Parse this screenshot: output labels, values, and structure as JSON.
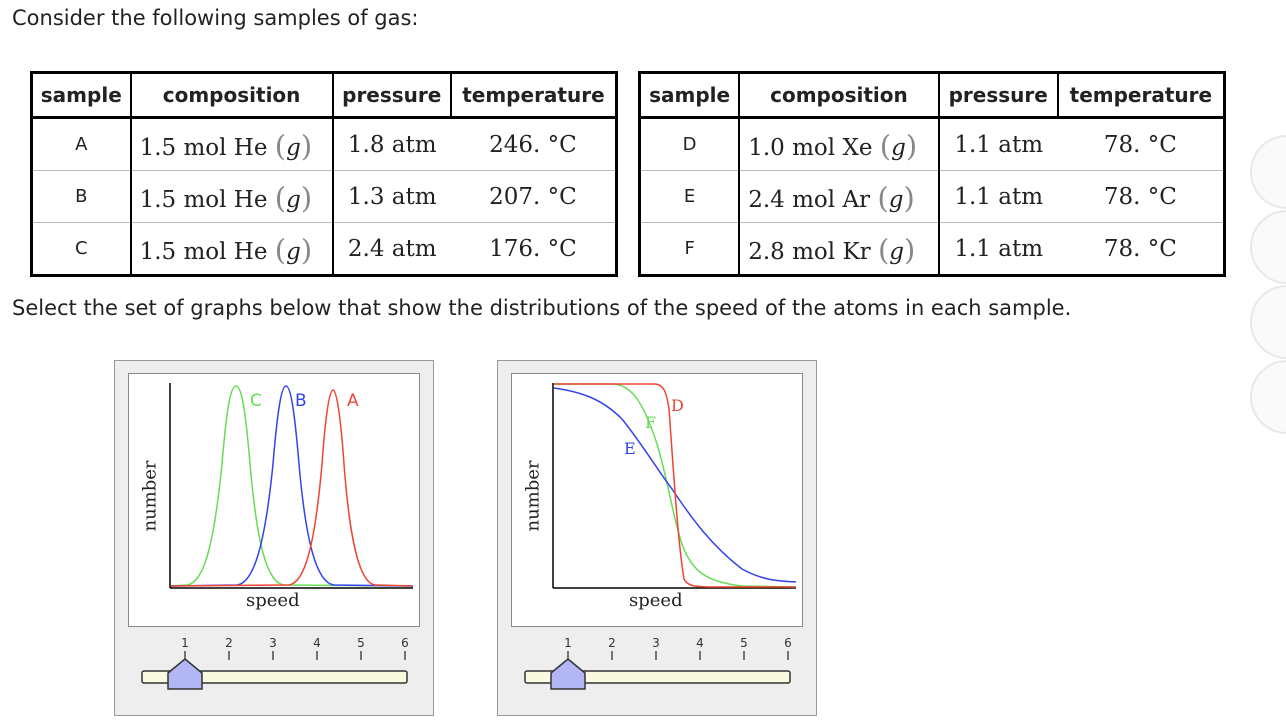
{
  "intro": "Consider the following samples of gas:",
  "table_headers": [
    "sample",
    "composition",
    "pressure",
    "temperature"
  ],
  "left_table": [
    {
      "sample": "A",
      "amount": "1.5 mol He",
      "phase": "g",
      "pressure": "1.8 atm",
      "temperature": "246. °C"
    },
    {
      "sample": "B",
      "amount": "1.5 mol He",
      "phase": "g",
      "pressure": "1.3 atm",
      "temperature": "207. °C"
    },
    {
      "sample": "C",
      "amount": "1.5 mol He",
      "phase": "g",
      "pressure": "2.4 atm",
      "temperature": "176. °C"
    }
  ],
  "right_table": [
    {
      "sample": "D",
      "amount": "1.0 mol Xe",
      "phase": "g",
      "pressure": "1.1 atm",
      "temperature": "78. °C"
    },
    {
      "sample": "E",
      "amount": "2.4 mol Ar",
      "phase": "g",
      "pressure": "1.1 atm",
      "temperature": "78. °C"
    },
    {
      "sample": "F",
      "amount": "2.8 mol Kr",
      "phase": "g",
      "pressure": "1.1 atm",
      "temperature": "78. °C"
    }
  ],
  "instruction": "Select the set of graphs below that show the distributions of the speed of the atoms in each sample.",
  "graph1": {
    "ylabel": "number",
    "xlabel": "speed",
    "curve_labels": [
      "C",
      "B",
      "A"
    ],
    "colors": {
      "C": "#66dd55",
      "B": "#3344ee",
      "A": "#ee4433"
    }
  },
  "graph2": {
    "ylabel": "number",
    "xlabel": "speed",
    "curve_labels": [
      "D",
      "F",
      "E"
    ],
    "colors": {
      "D": "#ee4433",
      "F": "#66dd55",
      "E": "#3344ee"
    }
  },
  "slider_ticks": [
    "1",
    "2",
    "3",
    "4",
    "5",
    "6"
  ],
  "slider1_value": 1,
  "slider2_value": 1
}
